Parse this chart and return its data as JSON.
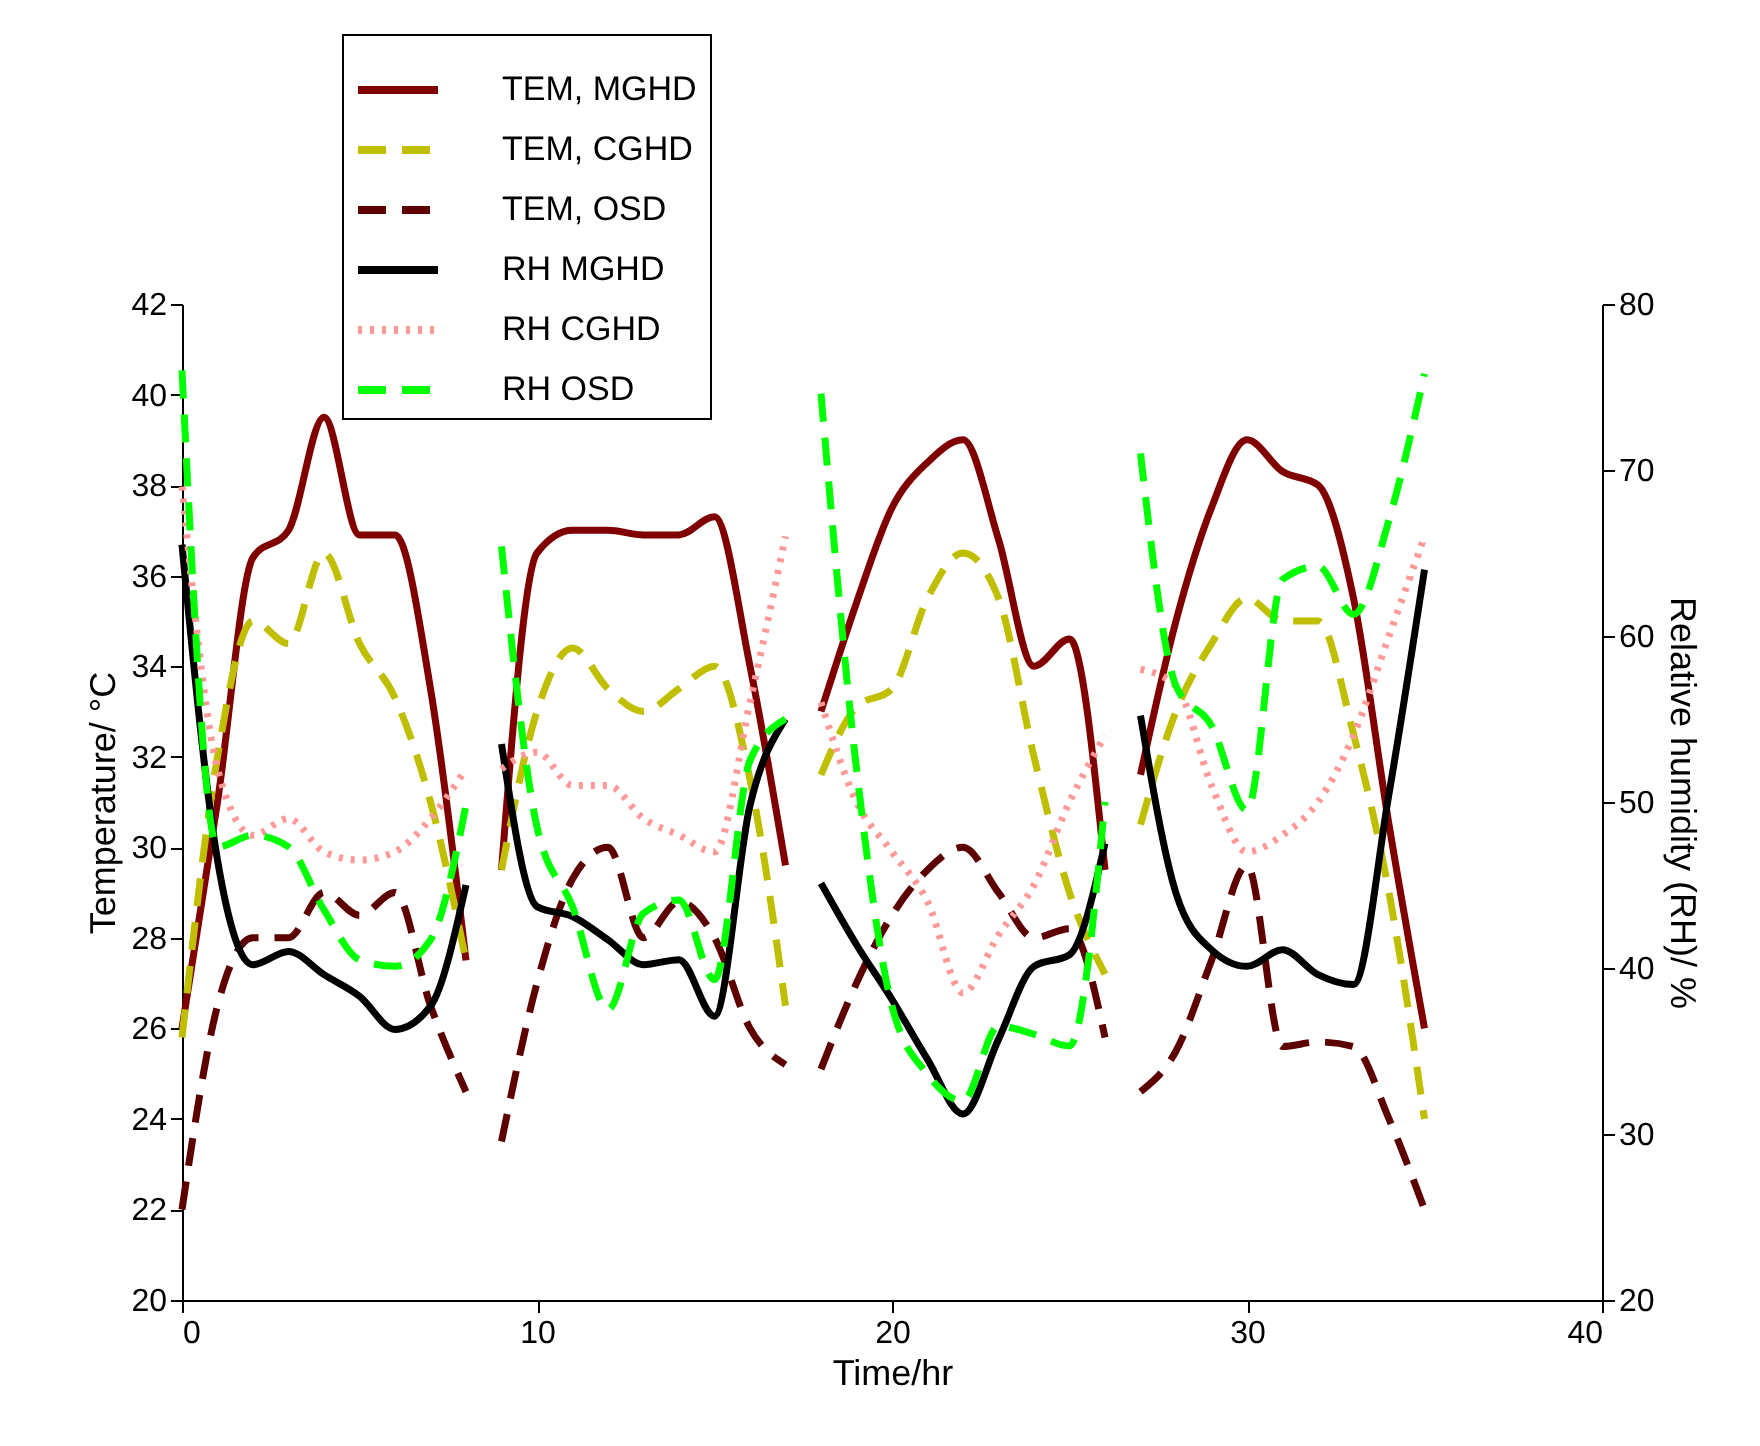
{
  "chart_data": {
    "type": "line",
    "xlabel": "Time/hr",
    "ylabel": "Temperature/ °C",
    "y2label": "Relative humidity (RH)/ %",
    "x": [
      0,
      1,
      2,
      3,
      4,
      5,
      6,
      7,
      8,
      8.5,
      9,
      10,
      11,
      12,
      13,
      14,
      15,
      16,
      17,
      17.5,
      18,
      19,
      20,
      21,
      22,
      23,
      24,
      25,
      26,
      26.5,
      27,
      28,
      29,
      30,
      31,
      32,
      33,
      34,
      35
    ],
    "series": [
      {
        "name": "TEM, MGHD",
        "color": "#800000",
        "line_style": "solid",
        "values": [
          26,
          31,
          36.4,
          37,
          39.5,
          36.9,
          36.9,
          33.5,
          27.5,
          null,
          29.5,
          36.5,
          37,
          37,
          36.9,
          36.9,
          37.3,
          34,
          29.6,
          null,
          33,
          35.4,
          37.5,
          38.5,
          39,
          36.8,
          34,
          34.6,
          29.5,
          null,
          31.6,
          35,
          37.5,
          39,
          38.3,
          38,
          35.5,
          30.5,
          26
        ]
      },
      {
        "name": "TEM, CGHD",
        "color": "#bfbf00",
        "line_style": "dashed",
        "values": [
          25.8,
          32,
          35,
          34.5,
          36.5,
          34.5,
          33.3,
          31,
          27.5,
          null,
          29.5,
          33,
          34.4,
          33.5,
          33,
          33.5,
          34,
          31.5,
          26.5,
          null,
          31.6,
          33.1,
          33.5,
          35.5,
          36.5,
          35.5,
          32,
          29,
          27.2,
          null,
          30.5,
          33,
          34.5,
          35.5,
          35,
          35,
          32.5,
          29,
          24
        ]
      },
      {
        "name": "TEM, OSD",
        "color": "#5c0000",
        "line_style": "dashed",
        "values": [
          22,
          26.5,
          28,
          28,
          29,
          28.5,
          29,
          26.5,
          24.6,
          null,
          23.5,
          27,
          29.3,
          30,
          28,
          28.8,
          28,
          26,
          25.2,
          null,
          25.1,
          27,
          28.5,
          29.5,
          30,
          29,
          28,
          28.2,
          25.8,
          null,
          24.6,
          25.5,
          27.5,
          29.6,
          25.6,
          25.7,
          25.6,
          24,
          22
        ]
      },
      {
        "name": "RH MGHD",
        "color": "#000000",
        "line_style": "solid",
        "axis": "y2",
        "values": [
          65.5,
          46.5,
          40.2,
          41,
          39.6,
          38.3,
          36.3,
          37.7,
          45,
          null,
          53.5,
          43.7,
          43.1,
          41.7,
          40.2,
          40.5,
          37.1,
          49.8,
          55,
          null,
          45.1,
          41.4,
          38.1,
          34.5,
          31.2,
          35.7,
          40.1,
          40.8,
          47.5,
          null,
          55.2,
          44.5,
          41.1,
          40.1,
          41.1,
          39.6,
          39,
          50.5,
          64
        ]
      },
      {
        "name": "RH CGHD",
        "color": "#ff9999",
        "line_style": "dotted",
        "axis": "y2",
        "values": [
          69,
          52,
          48,
          49,
          47,
          46.5,
          47,
          49,
          52,
          null,
          52,
          53,
          51,
          51,
          49,
          48,
          47,
          56,
          66,
          null,
          56,
          50,
          47,
          44,
          38.5,
          42,
          45,
          50,
          54,
          null,
          58,
          57,
          51,
          47,
          48,
          50,
          54,
          60,
          66
        ]
      },
      {
        "name": "RH OSD",
        "color": "#00ff00",
        "line_style": "dashed",
        "axis": "y2",
        "values": [
          76,
          47.3,
          48,
          47.3,
          43.5,
          40.5,
          40.1,
          41.7,
          49.8,
          null,
          65.4,
          48.5,
          43.7,
          37.5,
          43.3,
          44.1,
          39.3,
          52.5,
          55,
          null,
          74.6,
          52,
          37.7,
          33.6,
          32,
          36.5,
          36,
          35.3,
          50,
          null,
          71,
          57,
          54.6,
          49.5,
          63.4,
          64.2,
          61.3,
          67,
          75.8
        ]
      }
    ],
    "xlim": [
      0,
      40
    ],
    "xticks": [
      0,
      10,
      20,
      30,
      40
    ],
    "ylim": [
      20,
      42
    ],
    "yticks": [
      20,
      22,
      24,
      26,
      28,
      30,
      32,
      34,
      36,
      38,
      40,
      42
    ],
    "y2lim": [
      20,
      80
    ],
    "y2ticks": [
      20,
      30,
      40,
      50,
      60,
      70,
      80
    ],
    "grid": false,
    "legend": "top",
    "marker": "none"
  }
}
